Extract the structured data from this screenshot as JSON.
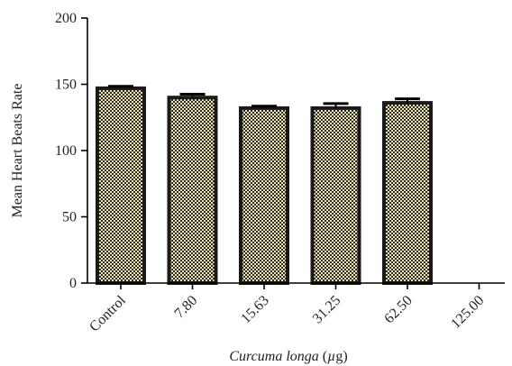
{
  "chart_data": {
    "type": "bar",
    "categories": [
      "Control",
      "7.80",
      "15.63",
      "31.25",
      "62.50",
      "125.00"
    ],
    "values": [
      147,
      140,
      132,
      132,
      136,
      null
    ],
    "errors": [
      1.5,
      2.5,
      1.5,
      3.5,
      3.0,
      null
    ],
    "ylabel": "Mean Heart Beats Rate",
    "xlabel": {
      "italic": "Curcuma longa",
      "plain": " (",
      "unit_mu": "µ",
      "unit_rest": "g)"
    },
    "ylim": [
      0,
      200
    ],
    "yticks": [
      0,
      50,
      100,
      150,
      200
    ],
    "grid": false,
    "legend": "none",
    "colors": {
      "bar_fill": "#f0e6b0",
      "bar_pattern": "#2a2a2a",
      "bar_outline": "#1a1a1a",
      "axis": "#000000"
    }
  }
}
